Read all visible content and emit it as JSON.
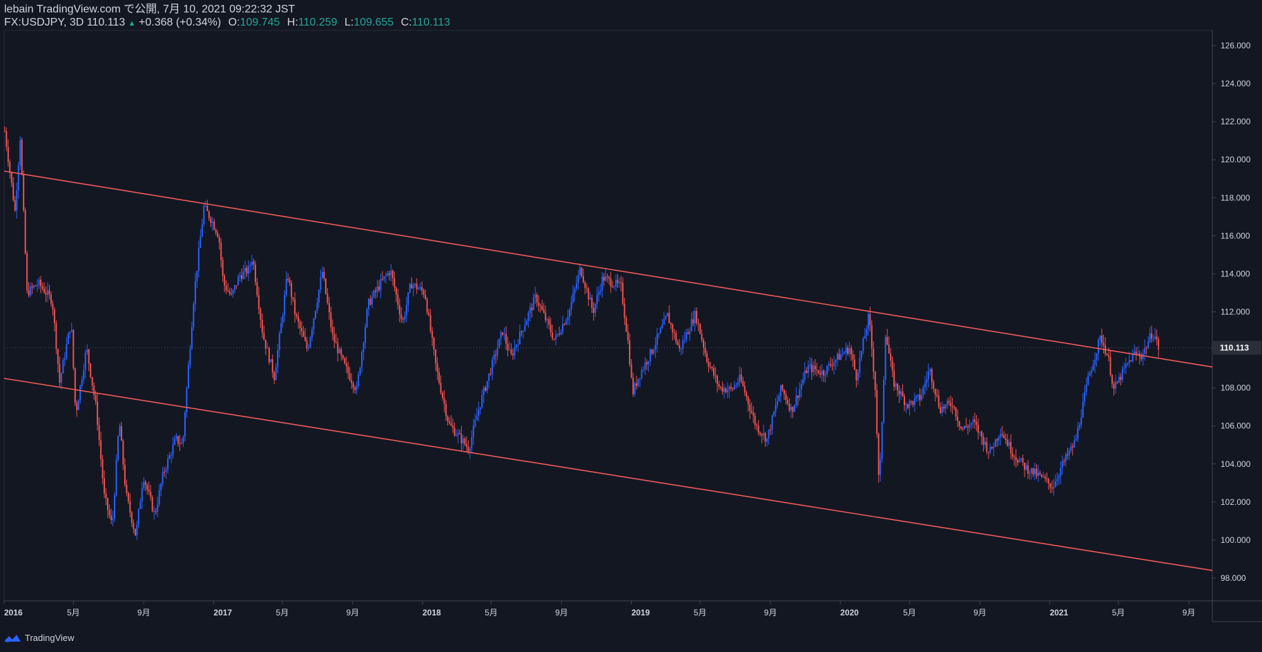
{
  "header": {
    "publish_line": "lebain TradingView.com で公開, 7月 10, 2021 09:22:32 JST",
    "symbol": "FX:USDJPY, 3D",
    "last": "110.113",
    "change_arrow": "▲",
    "change": "+0.368 (+0.34%)",
    "open_label": "O:",
    "open": "109.745",
    "high_label": "H:",
    "high": "110.259",
    "low_label": "L:",
    "low": "109.655",
    "close_label": "C:",
    "close": "110.113"
  },
  "footer": {
    "brand": "TradingView",
    "logo_icon": "tradingview-logo-icon"
  },
  "colors": {
    "background": "#131722",
    "up": "#2962ff",
    "down": "#ef5350",
    "trendline": "#f05a5a",
    "grid": "#2a2e39",
    "text": "#d1d4dc",
    "accent": "#26a69a"
  },
  "chart_data": {
    "type": "candlestick",
    "symbol": "FX:USDJPY",
    "interval": "3D",
    "x_range": [
      "2016-01-01",
      "2021-10-12"
    ],
    "y_range": [
      96.8,
      126.8
    ],
    "y_ticks": [
      "98.000",
      "100.000",
      "102.000",
      "104.000",
      "106.000",
      "108.000",
      "110.000",
      "112.000",
      "114.000",
      "116.000",
      "118.000",
      "120.000",
      "122.000",
      "124.000",
      "126.000"
    ],
    "x_ticks": [
      {
        "label": "2016",
        "date": "2016-01-01"
      },
      {
        "label": "5月",
        "date": "2016-05-01"
      },
      {
        "label": "9月",
        "date": "2016-09-01"
      },
      {
        "label": "2017",
        "date": "2017-01-01"
      },
      {
        "label": "5月",
        "date": "2017-05-01"
      },
      {
        "label": "9月",
        "date": "2017-09-01"
      },
      {
        "label": "2018",
        "date": "2018-01-01"
      },
      {
        "label": "5月",
        "date": "2018-05-01"
      },
      {
        "label": "9月",
        "date": "2018-09-01"
      },
      {
        "label": "2019",
        "date": "2019-01-01"
      },
      {
        "label": "5月",
        "date": "2019-05-01"
      },
      {
        "label": "9月",
        "date": "2019-09-01"
      },
      {
        "label": "2020",
        "date": "2020-01-01"
      },
      {
        "label": "5月",
        "date": "2020-05-01"
      },
      {
        "label": "9月",
        "date": "2020-09-01"
      },
      {
        "label": "2021",
        "date": "2021-01-01"
      },
      {
        "label": "5月",
        "date": "2021-05-01"
      },
      {
        "label": "9月",
        "date": "2021-09-01"
      }
    ],
    "last_price_label": "110.113",
    "trendlines": [
      {
        "name": "upper-channel",
        "points": [
          {
            "date": "2016-01-01",
            "value": 119.4
          },
          {
            "date": "2021-10-12",
            "value": 109.1
          }
        ]
      },
      {
        "name": "lower-channel",
        "points": [
          {
            "date": "2016-01-01",
            "value": 108.5
          },
          {
            "date": "2021-10-12",
            "value": 98.4
          }
        ]
      }
    ],
    "close_path": [
      [
        "2016-01-02",
        121.5
      ],
      [
        "2016-01-20",
        117.3
      ],
      [
        "2016-01-29",
        121.2
      ],
      [
        "2016-02-10",
        113.0
      ],
      [
        "2016-03-01",
        113.5
      ],
      [
        "2016-03-25",
        112.6
      ],
      [
        "2016-04-07",
        108.3
      ],
      [
        "2016-04-27",
        111.5
      ],
      [
        "2016-05-05",
        106.6
      ],
      [
        "2016-05-24",
        110.1
      ],
      [
        "2016-06-10",
        106.9
      ],
      [
        "2016-06-24",
        102.3
      ],
      [
        "2016-07-08",
        100.7
      ],
      [
        "2016-07-20",
        106.3
      ],
      [
        "2016-08-01",
        102.4
      ],
      [
        "2016-08-18",
        100.2
      ],
      [
        "2016-08-31",
        103.4
      ],
      [
        "2016-09-20",
        101.3
      ],
      [
        "2016-10-05",
        103.5
      ],
      [
        "2016-10-27",
        105.3
      ],
      [
        "2016-11-08",
        105.0
      ],
      [
        "2016-11-12",
        106.8
      ],
      [
        "2016-11-28",
        113.0
      ],
      [
        "2016-12-15",
        117.5
      ],
      [
        "2016-12-29",
        116.8
      ],
      [
        "2017-01-10",
        116.0
      ],
      [
        "2017-01-18",
        113.5
      ],
      [
        "2017-02-01",
        112.8
      ],
      [
        "2017-02-15",
        113.9
      ],
      [
        "2017-03-03",
        114.2
      ],
      [
        "2017-03-10",
        114.9
      ],
      [
        "2017-03-28",
        110.8
      ],
      [
        "2017-04-17",
        108.6
      ],
      [
        "2017-05-02",
        112.0
      ],
      [
        "2017-05-10",
        114.0
      ],
      [
        "2017-05-24",
        111.8
      ],
      [
        "2017-06-14",
        110.0
      ],
      [
        "2017-07-10",
        114.1
      ],
      [
        "2017-07-28",
        110.7
      ],
      [
        "2017-08-17",
        109.2
      ],
      [
        "2017-09-08",
        107.9
      ],
      [
        "2017-09-28",
        112.4
      ],
      [
        "2017-10-20",
        113.5
      ],
      [
        "2017-11-06",
        114.2
      ],
      [
        "2017-11-27",
        111.4
      ],
      [
        "2017-12-12",
        113.5
      ],
      [
        "2018-01-05",
        113.0
      ],
      [
        "2018-01-25",
        109.0
      ],
      [
        "2018-02-16",
        106.1
      ],
      [
        "2018-03-23",
        104.8
      ],
      [
        "2018-04-10",
        107.0
      ],
      [
        "2018-05-21",
        111.0
      ],
      [
        "2018-06-04",
        109.6
      ],
      [
        "2018-07-18",
        112.8
      ],
      [
        "2018-08-20",
        110.5
      ],
      [
        "2018-09-14",
        112.0
      ],
      [
        "2018-10-04",
        114.3
      ],
      [
        "2018-10-26",
        112.0
      ],
      [
        "2018-11-12",
        113.8
      ],
      [
        "2018-12-14",
        113.3
      ],
      [
        "2018-12-27",
        110.2
      ],
      [
        "2019-01-03",
        107.7
      ],
      [
        "2019-01-15",
        108.7
      ],
      [
        "2019-02-05",
        109.9
      ],
      [
        "2019-03-05",
        111.8
      ],
      [
        "2019-03-26",
        110.0
      ],
      [
        "2019-04-23",
        111.9
      ],
      [
        "2019-05-13",
        109.5
      ],
      [
        "2019-06-04",
        108.0
      ],
      [
        "2019-06-25",
        107.9
      ],
      [
        "2019-07-10",
        108.5
      ],
      [
        "2019-08-07",
        106.0
      ],
      [
        "2019-08-26",
        105.3
      ],
      [
        "2019-09-09",
        106.9
      ],
      [
        "2019-09-20",
        108.0
      ],
      [
        "2019-10-08",
        106.8
      ],
      [
        "2019-11-05",
        109.1
      ],
      [
        "2019-12-02",
        108.8
      ],
      [
        "2019-12-20",
        109.4
      ],
      [
        "2020-01-17",
        110.1
      ],
      [
        "2020-01-29",
        108.6
      ],
      [
        "2020-02-20",
        111.8
      ],
      [
        "2020-03-02",
        108.0
      ],
      [
        "2020-03-09",
        102.5
      ],
      [
        "2020-03-20",
        110.9
      ],
      [
        "2020-04-03",
        108.3
      ],
      [
        "2020-04-27",
        107.1
      ],
      [
        "2020-05-20",
        107.5
      ],
      [
        "2020-06-05",
        109.0
      ],
      [
        "2020-06-23",
        106.9
      ],
      [
        "2020-07-15",
        107.2
      ],
      [
        "2020-07-31",
        105.8
      ],
      [
        "2020-08-21",
        106.2
      ],
      [
        "2020-09-18",
        104.6
      ],
      [
        "2020-10-07",
        105.8
      ],
      [
        "2020-10-30",
        104.5
      ],
      [
        "2020-11-20",
        103.8
      ],
      [
        "2020-12-17",
        103.3
      ],
      [
        "2021-01-06",
        102.8
      ],
      [
        "2021-01-22",
        103.9
      ],
      [
        "2021-02-15",
        105.2
      ],
      [
        "2021-03-10",
        108.6
      ],
      [
        "2021-03-31",
        110.7
      ],
      [
        "2021-04-13",
        109.6
      ],
      [
        "2021-04-23",
        107.9
      ],
      [
        "2021-05-10",
        108.9
      ],
      [
        "2021-05-28",
        109.8
      ],
      [
        "2021-06-11",
        109.7
      ],
      [
        "2021-06-29",
        110.9
      ],
      [
        "2021-07-04",
        110.7
      ],
      [
        "2021-07-10",
        110.113
      ]
    ]
  }
}
